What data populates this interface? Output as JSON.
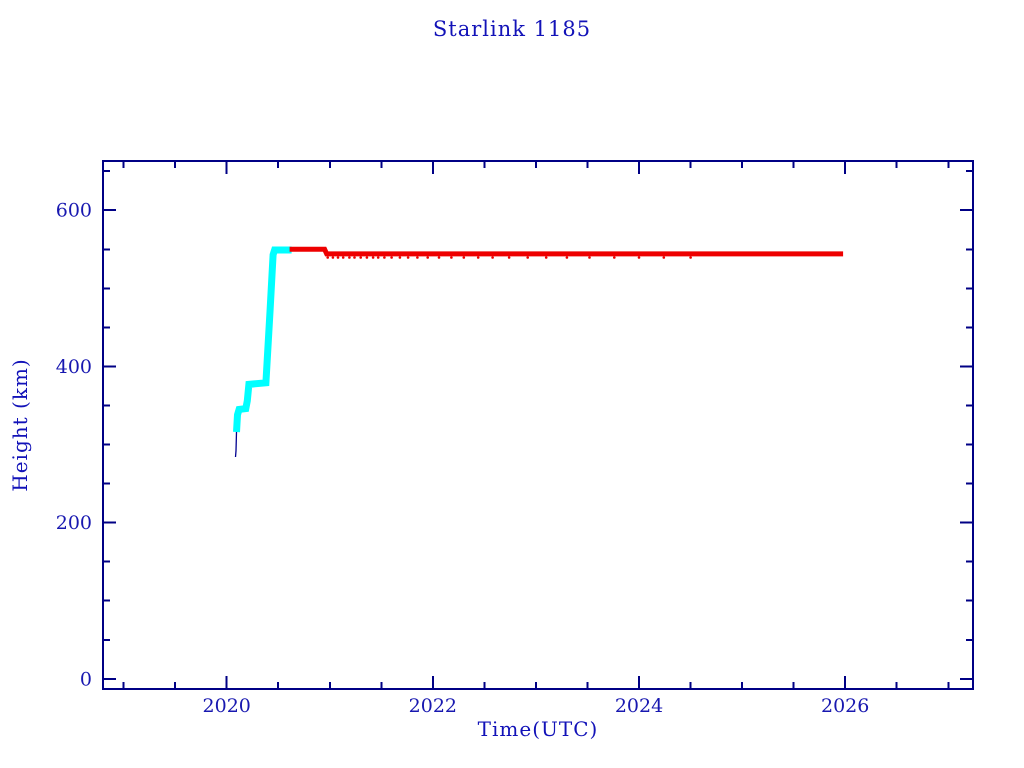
{
  "chart_data": {
    "type": "line",
    "title": "Starlink 1185",
    "xlabel": "Time(UTC)",
    "ylabel": "Height (km)",
    "xlim": [
      2018.8,
      2027.24
    ],
    "ylim": [
      -13,
      663
    ],
    "grid": false,
    "legend": null,
    "x_major_ticks": [
      2020,
      2022,
      2024,
      2026
    ],
    "x_tick_labels": [
      "2020",
      "2022",
      "2024",
      "2026"
    ],
    "x_minor_step": 0.5,
    "y_major_ticks": [
      0,
      200,
      400,
      600
    ],
    "y_tick_labels": [
      "0",
      "200",
      "400",
      "600"
    ],
    "y_minor_step": 50,
    "colors": {
      "axis": "#000085",
      "text": "#1818b0",
      "ascent_series": "#00ffff",
      "operational_series": "#ee0000",
      "thin_line": "#000090",
      "background": "#ffffff"
    },
    "series": [
      {
        "name": "pre-deploy-thin-line",
        "color": "#000090",
        "width": 1.3,
        "points": [
          [
            2020.085,
            284
          ],
          [
            2020.09,
            292
          ],
          [
            2020.095,
            316
          ]
        ]
      },
      {
        "name": "orbit-raising-cyan",
        "color": "#00ffff",
        "width": 7,
        "points": [
          [
            2020.095,
            316
          ],
          [
            2020.105,
            338
          ],
          [
            2020.12,
            345
          ],
          [
            2020.185,
            346
          ],
          [
            2020.2,
            356
          ],
          [
            2020.215,
            377
          ],
          [
            2020.38,
            379
          ],
          [
            2020.42,
            470
          ],
          [
            2020.45,
            543
          ],
          [
            2020.465,
            549
          ],
          [
            2020.63,
            549
          ]
        ]
      },
      {
        "name": "operational-red",
        "color": "#ee0000",
        "width": 5,
        "points": [
          [
            2020.61,
            550
          ],
          [
            2020.95,
            550
          ],
          [
            2020.97,
            544
          ],
          [
            2025.98,
            544
          ]
        ]
      }
    ],
    "scatter_dots": {
      "name": "red-data-point-fringe",
      "color": "#ee0000",
      "km": 539.5,
      "radius": 1.3,
      "years": [
        2020.98,
        2021.03,
        2021.08,
        2021.13,
        2021.19,
        2021.24,
        2021.3,
        2021.36,
        2021.42,
        2021.47,
        2021.53,
        2021.6,
        2021.68,
        2021.76,
        2021.85,
        2021.95,
        2022.06,
        2022.18,
        2022.3,
        2022.44,
        2022.58,
        2022.74,
        2022.92,
        2023.1,
        2023.3,
        2023.52,
        2023.76,
        2024.0,
        2024.24,
        2024.5
      ]
    }
  }
}
